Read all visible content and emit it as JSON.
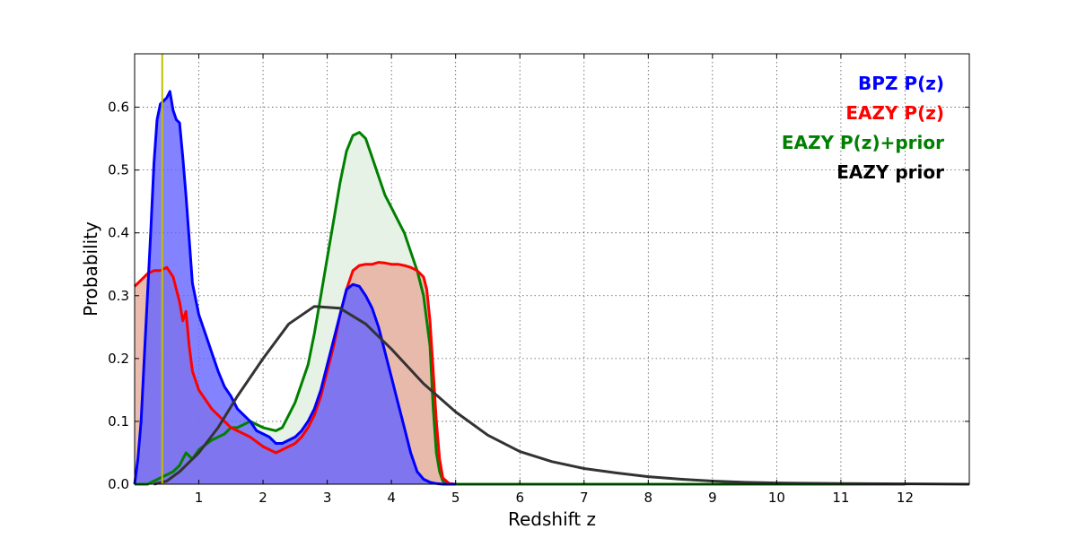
{
  "chart_data": {
    "type": "area",
    "xlabel": "Redshift z",
    "ylabel": "Probability",
    "xlim": [
      0,
      13
    ],
    "ylim": [
      0,
      0.685
    ],
    "x_ticks": [
      1,
      2,
      3,
      4,
      5,
      6,
      7,
      8,
      9,
      10,
      11,
      12
    ],
    "x_tick_labels": [
      "1",
      "2",
      "3",
      "4",
      "5",
      "6",
      "7",
      "8",
      "9",
      "10",
      "11",
      "12"
    ],
    "y_ticks": [
      0.0,
      0.1,
      0.2,
      0.3,
      0.4,
      0.5,
      0.6
    ],
    "y_tick_labels": [
      "0.0",
      "0.1",
      "0.2",
      "0.3",
      "0.4",
      "0.5",
      "0.6"
    ],
    "grid": true,
    "legend_position": "top-right",
    "vline": {
      "x": 0.43,
      "color": "#bfbf00"
    },
    "series": [
      {
        "name": "EAZY P(z)+prior",
        "color": "#008000",
        "fill": "#e6f2e6",
        "x": [
          0,
          0.1,
          0.2,
          0.3,
          0.4,
          0.5,
          0.6,
          0.7,
          0.8,
          0.9,
          1.0,
          1.2,
          1.4,
          1.5,
          1.6,
          1.8,
          2.0,
          2.2,
          2.3,
          2.4,
          2.5,
          2.6,
          2.7,
          2.8,
          2.9,
          3.0,
          3.1,
          3.2,
          3.3,
          3.4,
          3.5,
          3.6,
          3.7,
          3.8,
          3.9,
          4.0,
          4.1,
          4.2,
          4.3,
          4.4,
          4.5,
          4.6,
          4.65,
          4.7,
          4.75,
          4.8,
          4.85,
          4.9,
          5.0,
          12.0
        ],
        "y": [
          0,
          0,
          0,
          0.005,
          0.01,
          0.015,
          0.02,
          0.03,
          0.05,
          0.04,
          0.055,
          0.07,
          0.08,
          0.09,
          0.09,
          0.1,
          0.09,
          0.085,
          0.09,
          0.11,
          0.13,
          0.16,
          0.19,
          0.24,
          0.3,
          0.36,
          0.42,
          0.48,
          0.53,
          0.555,
          0.56,
          0.55,
          0.52,
          0.49,
          0.46,
          0.44,
          0.42,
          0.4,
          0.37,
          0.34,
          0.3,
          0.22,
          0.12,
          0.05,
          0.02,
          0.005,
          0.001,
          0,
          0,
          0
        ]
      },
      {
        "name": "EAZY P(z)",
        "color": "#ff0000",
        "fill": "#e8b0a0",
        "x": [
          0,
          0.05,
          0.1,
          0.2,
          0.3,
          0.4,
          0.5,
          0.6,
          0.7,
          0.75,
          0.8,
          0.85,
          0.9,
          1.0,
          1.2,
          1.4,
          1.5,
          1.6,
          1.8,
          2.0,
          2.1,
          2.2,
          2.3,
          2.4,
          2.5,
          2.6,
          2.7,
          2.8,
          2.9,
          3.0,
          3.1,
          3.2,
          3.3,
          3.4,
          3.5,
          3.6,
          3.7,
          3.8,
          3.9,
          4.0,
          4.1,
          4.2,
          4.3,
          4.4,
          4.5,
          4.55,
          4.6,
          4.65,
          4.7,
          4.75,
          4.8,
          4.9,
          5.0
        ],
        "y": [
          0.315,
          0.32,
          0.325,
          0.335,
          0.34,
          0.34,
          0.345,
          0.33,
          0.29,
          0.26,
          0.275,
          0.22,
          0.18,
          0.15,
          0.12,
          0.1,
          0.09,
          0.085,
          0.075,
          0.06,
          0.055,
          0.05,
          0.055,
          0.06,
          0.065,
          0.075,
          0.09,
          0.11,
          0.14,
          0.18,
          0.22,
          0.27,
          0.31,
          0.34,
          0.348,
          0.35,
          0.35,
          0.353,
          0.352,
          0.35,
          0.35,
          0.348,
          0.345,
          0.34,
          0.33,
          0.31,
          0.26,
          0.18,
          0.1,
          0.04,
          0.01,
          0.001,
          0
        ]
      },
      {
        "name": "BPZ P(z)",
        "color": "#0000ff",
        "fill": "#6464ff",
        "x": [
          0,
          0.05,
          0.1,
          0.15,
          0.2,
          0.25,
          0.3,
          0.35,
          0.4,
          0.45,
          0.5,
          0.55,
          0.6,
          0.65,
          0.7,
          0.75,
          0.8,
          0.85,
          0.9,
          1.0,
          1.1,
          1.2,
          1.3,
          1.4,
          1.5,
          1.6,
          1.7,
          1.8,
          1.9,
          2.0,
          2.1,
          2.2,
          2.3,
          2.4,
          2.5,
          2.6,
          2.7,
          2.8,
          2.9,
          3.0,
          3.1,
          3.2,
          3.3,
          3.4,
          3.5,
          3.6,
          3.7,
          3.8,
          3.9,
          4.0,
          4.1,
          4.2,
          4.3,
          4.4,
          4.5,
          4.6,
          4.7,
          4.8,
          4.9,
          5.0
        ],
        "y": [
          0,
          0.04,
          0.1,
          0.2,
          0.3,
          0.4,
          0.51,
          0.58,
          0.605,
          0.61,
          0.615,
          0.625,
          0.595,
          0.58,
          0.575,
          0.52,
          0.46,
          0.39,
          0.32,
          0.27,
          0.24,
          0.21,
          0.18,
          0.155,
          0.14,
          0.12,
          0.11,
          0.1,
          0.085,
          0.08,
          0.075,
          0.065,
          0.065,
          0.07,
          0.075,
          0.085,
          0.1,
          0.12,
          0.15,
          0.19,
          0.23,
          0.27,
          0.31,
          0.318,
          0.315,
          0.3,
          0.28,
          0.25,
          0.21,
          0.17,
          0.13,
          0.09,
          0.05,
          0.02,
          0.008,
          0.003,
          0.001,
          0,
          0,
          0
        ]
      },
      {
        "name": "EAZY prior",
        "color": "#333333",
        "fill": "none",
        "x": [
          0.3,
          0.5,
          0.7,
          1.0,
          1.3,
          1.6,
          2.0,
          2.4,
          2.8,
          3.2,
          3.6,
          4.0,
          4.5,
          5.0,
          5.5,
          6.0,
          6.5,
          7.0,
          7.5,
          8.0,
          8.5,
          9.0,
          9.5,
          10.0,
          11.0,
          12.0,
          13.0
        ],
        "y": [
          0,
          0.005,
          0.02,
          0.05,
          0.09,
          0.14,
          0.2,
          0.255,
          0.283,
          0.28,
          0.255,
          0.215,
          0.16,
          0.115,
          0.078,
          0.052,
          0.036,
          0.025,
          0.018,
          0.012,
          0.008,
          0.005,
          0.003,
          0.002,
          0.001,
          0.0005,
          0
        ]
      }
    ]
  }
}
